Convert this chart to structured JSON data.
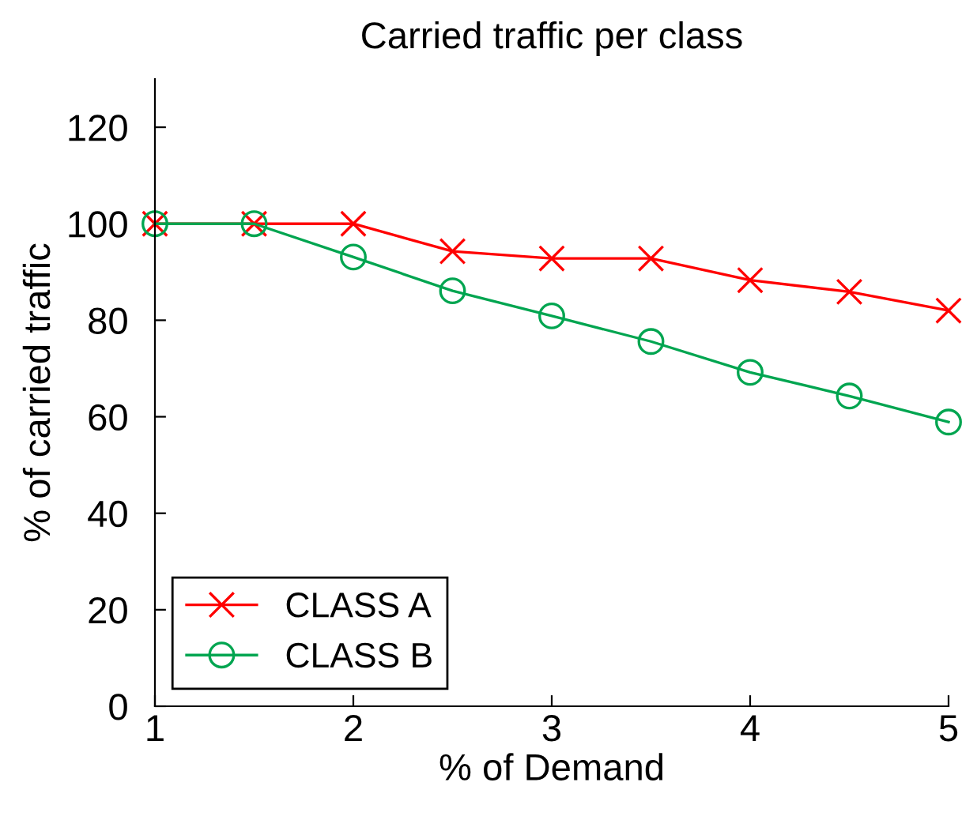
{
  "chart_data": {
    "type": "line",
    "title": "Carried traffic per class",
    "xlabel": "% of Demand",
    "ylabel": "% of carried traffic",
    "x": [
      1,
      1.5,
      2,
      2.5,
      3,
      3.5,
      4,
      4.5,
      5
    ],
    "series": [
      {
        "name": "CLASS A",
        "color": "#ff0000",
        "marker": "cross",
        "values": [
          100,
          100,
          100,
          94.3,
          92.8,
          92.8,
          88.3,
          85.9,
          82.0
        ]
      },
      {
        "name": "CLASS B",
        "color": "#00a550",
        "marker": "circle",
        "values": [
          100,
          100,
          93.1,
          86.1,
          80.9,
          75.6,
          69.2,
          64.3,
          58.9
        ]
      }
    ],
    "xlim": [
      1,
      5
    ],
    "xticks": [
      1,
      2,
      3,
      4,
      5
    ],
    "ylim": [
      0,
      130
    ],
    "yticks": [
      0,
      20,
      40,
      60,
      80,
      100,
      120
    ],
    "grid": false,
    "legend": "bottom left",
    "line_style": "solid"
  }
}
